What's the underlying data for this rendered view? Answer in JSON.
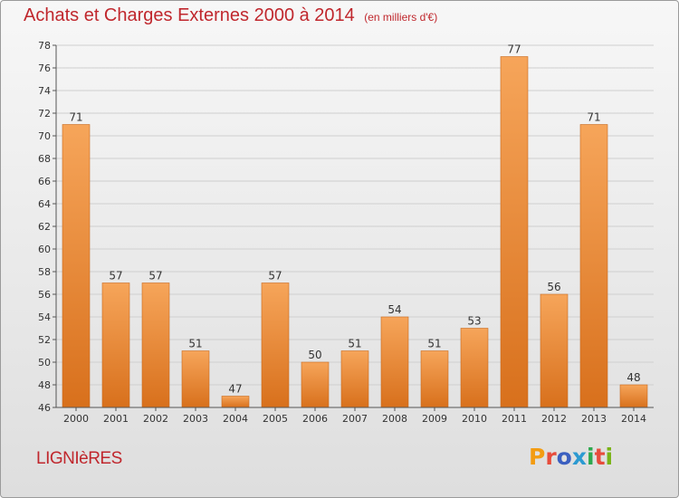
{
  "header": {
    "title": "Achats et Charges Externes 2000 à 2014",
    "subtitle": "(en milliers d'€)"
  },
  "footer": {
    "location": "LIGNIèRES",
    "brand": "Proxiti",
    "brand_colors": [
      "#f39c12",
      "#e74c3c",
      "#3b5fc0",
      "#2c9ad1",
      "#2ea84e",
      "#e74c3c",
      "#7ab317"
    ]
  },
  "chart_data": {
    "type": "bar",
    "categories": [
      "2000",
      "2001",
      "2002",
      "2003",
      "2004",
      "2005",
      "2006",
      "2007",
      "2008",
      "2009",
      "2010",
      "2011",
      "2012",
      "2013",
      "2014"
    ],
    "values": [
      71,
      57,
      57,
      51,
      47,
      57,
      50,
      51,
      54,
      51,
      53,
      77,
      56,
      71,
      48
    ],
    "ylim": [
      46,
      78
    ],
    "ytick_step": 2,
    "grid": true,
    "colors": {
      "bar_light": "#f6a55a",
      "bar_dark": "#d8701c",
      "grid": "#cfcfcf",
      "axis": "#555555",
      "label": "#333333"
    }
  }
}
